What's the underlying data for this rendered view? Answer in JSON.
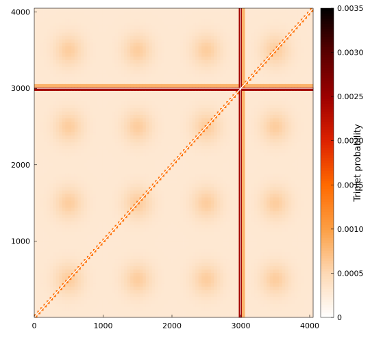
{
  "chart_data": {
    "type": "heatmap",
    "title": "",
    "xlabel": "",
    "ylabel": "",
    "xlim": [
      0,
      4050
    ],
    "ylim": [
      0,
      4050
    ],
    "xticks": [
      0,
      1000,
      2000,
      3000,
      4000
    ],
    "yticks": [
      1000,
      2000,
      3000,
      4000
    ],
    "colorbar": {
      "label": "Triplet probability",
      "range": [
        0,
        0.0035
      ],
      "ticks": [
        0,
        0.0005,
        0.001,
        0.0015,
        0.002,
        0.0025,
        0.003,
        0.0035
      ],
      "tick_labels": [
        "0",
        "0.0005",
        "0.0010",
        "0.0015",
        "0.0020",
        "0.0025",
        "0.0030",
        "0.0035"
      ],
      "colormap": [
        "#ffffff",
        "#fdd9b5",
        "#fc9f45",
        "#ff6a00",
        "#dd2200",
        "#9c0000",
        "#5a0000",
        "#000000"
      ]
    },
    "background_value": 0.0003,
    "diagonal_value": 0.0014,
    "band_positions": [
      3000
    ],
    "band_peak_value": 0.0032,
    "blob_centers_x": [
      500,
      1500,
      2500,
      3500
    ],
    "blob_centers_y": [
      500,
      1500,
      2500,
      3500
    ],
    "blob_peak_value": 0.0006
  }
}
